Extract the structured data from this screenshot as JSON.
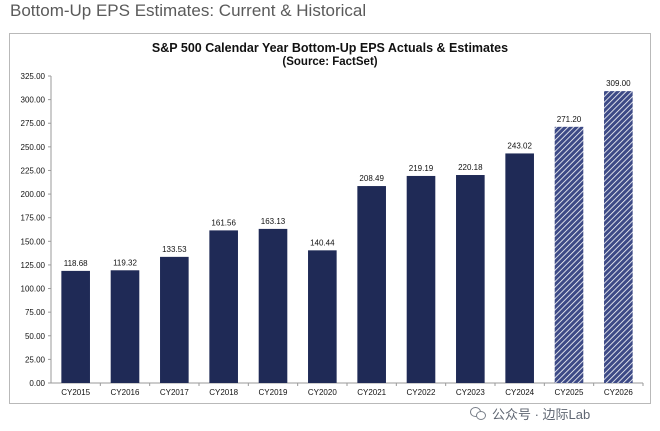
{
  "page": {
    "heading": "Bottom-Up EPS Estimates: Current & Historical"
  },
  "watermark": {
    "text": "公众号 · 边际Lab",
    "icon": "wechat-icon"
  },
  "colors": {
    "actual_bar": "#1f2a56",
    "estimate_bar": "#3d4a86",
    "estimate_stripe": "#ffffff",
    "axis": "#9a9a9a",
    "text": "#111111"
  },
  "chart_data": {
    "type": "bar",
    "title": "S&P 500 Calendar Year Bottom-Up EPS Actuals & Estimates",
    "subtitle": "(Source: FactSet)",
    "xlabel": "",
    "ylabel": "",
    "ylim": [
      0,
      325
    ],
    "ytick_step": 25,
    "yticks": [
      "0.00",
      "25.00",
      "50.00",
      "75.00",
      "100.00",
      "125.00",
      "150.00",
      "175.00",
      "200.00",
      "225.00",
      "250.00",
      "275.00",
      "300.00",
      "325.00"
    ],
    "grid": false,
    "categories": [
      "CY2015",
      "CY2016",
      "CY2017",
      "CY2018",
      "CY2019",
      "CY2020",
      "CY2021",
      "CY2022",
      "CY2023",
      "CY2024",
      "CY2025",
      "CY2026"
    ],
    "values": [
      118.68,
      119.32,
      133.53,
      161.56,
      163.13,
      140.44,
      208.49,
      219.19,
      220.18,
      243.02,
      271.2,
      309.0
    ],
    "labels": [
      "118.68",
      "119.32",
      "133.53",
      "161.56",
      "163.13",
      "140.44",
      "208.49",
      "219.19",
      "220.18",
      "243.02",
      "271.20",
      "309.00"
    ],
    "kind": [
      "actual",
      "actual",
      "actual",
      "actual",
      "actual",
      "actual",
      "actual",
      "actual",
      "actual",
      "actual",
      "estimate",
      "estimate"
    ]
  }
}
